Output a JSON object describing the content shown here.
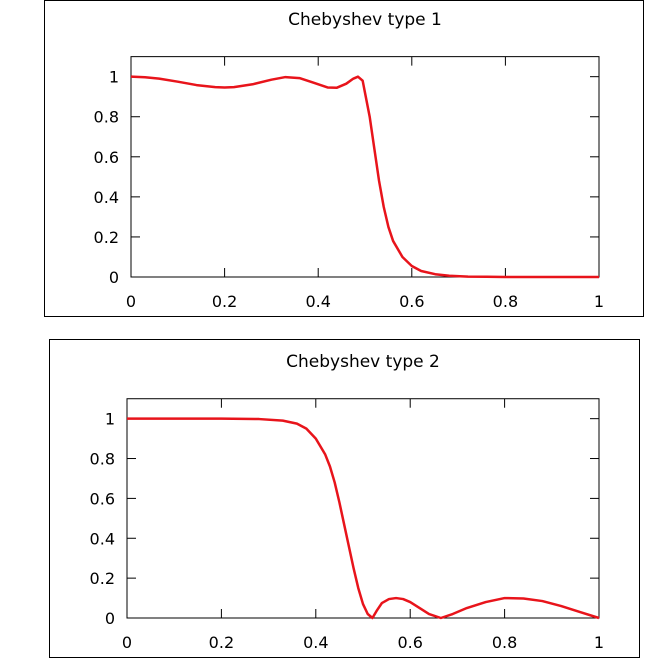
{
  "chart_data": [
    {
      "type": "line",
      "title": "Chebyshev type 1",
      "xlabel": "",
      "ylabel": "",
      "xlim": [
        0,
        1
      ],
      "ylim": [
        0,
        1.1
      ],
      "xticks": [
        "0",
        "0.2",
        "0.4",
        "0.6",
        "0.8",
        "1"
      ],
      "yticks": [
        "0",
        "0.2",
        "0.4",
        "0.6",
        "0.8",
        "1"
      ],
      "grid": false,
      "color": "#e8141b",
      "series": [
        {
          "x": [
            0,
            0.03,
            0.06,
            0.1,
            0.14,
            0.18,
            0.2,
            0.22,
            0.26,
            0.3,
            0.33,
            0.36,
            0.39,
            0.42,
            0.44,
            0.46,
            0.475,
            0.485,
            0.495,
            0.5,
            0.51,
            0.52,
            0.53,
            0.54,
            0.55,
            0.56,
            0.58,
            0.6,
            0.62,
            0.65,
            0.68,
            0.72,
            0.76,
            0.8,
            0.85,
            0.9,
            1.0
          ],
          "y": [
            1.0,
            0.997,
            0.99,
            0.975,
            0.958,
            0.948,
            0.946,
            0.948,
            0.962,
            0.985,
            0.998,
            0.993,
            0.97,
            0.946,
            0.945,
            0.965,
            0.99,
            1.0,
            0.98,
            0.92,
            0.8,
            0.64,
            0.48,
            0.35,
            0.25,
            0.18,
            0.1,
            0.055,
            0.03,
            0.014,
            0.006,
            0.002,
            0.001,
            0,
            0,
            0,
            0
          ]
        }
      ]
    },
    {
      "type": "line",
      "title": "Chebyshev type 2",
      "xlabel": "",
      "ylabel": "",
      "xlim": [
        0,
        1
      ],
      "ylim": [
        0,
        1.1
      ],
      "xticks": [
        "0",
        "0.2",
        "0.4",
        "0.6",
        "0.8",
        "1"
      ],
      "yticks": [
        "0",
        "0.2",
        "0.4",
        "0.6",
        "0.8",
        "1"
      ],
      "grid": false,
      "color": "#e8141b",
      "series": [
        {
          "x": [
            0,
            0.1,
            0.2,
            0.28,
            0.33,
            0.36,
            0.38,
            0.4,
            0.42,
            0.43,
            0.44,
            0.45,
            0.46,
            0.47,
            0.48,
            0.49,
            0.5,
            0.51,
            0.52,
            0.53,
            0.54,
            0.555,
            0.57,
            0.585,
            0.6,
            0.62,
            0.64,
            0.665,
            0.69,
            0.72,
            0.76,
            0.8,
            0.84,
            0.88,
            0.92,
            0.96,
            1.0
          ],
          "y": [
            1.0,
            1.0,
            1.0,
            0.998,
            0.99,
            0.975,
            0.95,
            0.9,
            0.82,
            0.76,
            0.68,
            0.58,
            0.47,
            0.36,
            0.25,
            0.15,
            0.07,
            0.02,
            0.0,
            0.04,
            0.075,
            0.095,
            0.1,
            0.095,
            0.08,
            0.05,
            0.02,
            0.0,
            0.02,
            0.05,
            0.08,
            0.1,
            0.098,
            0.085,
            0.06,
            0.03,
            0.0
          ]
        }
      ]
    }
  ]
}
